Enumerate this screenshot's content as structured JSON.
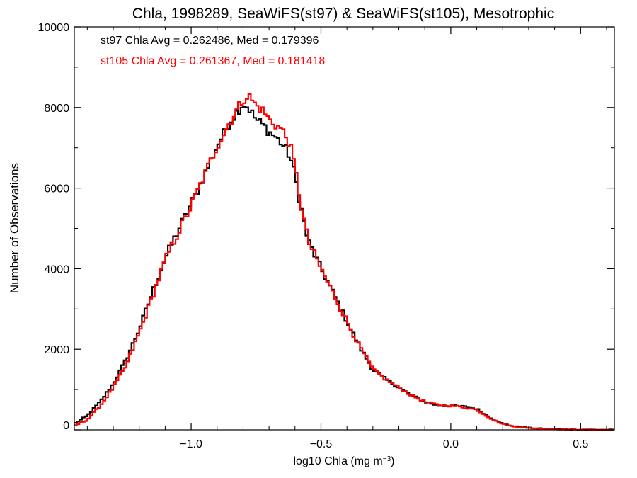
{
  "chart_data": {
    "type": "line",
    "title": "Chla, 1998289, SeaWiFS(st97) & SeaWiFS(st105), Mesotrophic",
    "xlabel": "log10 Chla (mg m",
    "xlabel_sup": "−3",
    "xlabel_suffix": ")",
    "ylabel": "Number of Observations",
    "xlim": [
      -1.45,
      0.63
    ],
    "ylim": [
      0,
      10000
    ],
    "xticks": [
      -1.0,
      -0.5,
      0.0,
      0.5
    ],
    "xtick_labels": [
      "−1.0",
      "−0.5",
      "0.0",
      "0.5"
    ],
    "yticks": [
      0,
      2000,
      4000,
      6000,
      8000,
      10000
    ],
    "ytick_labels": [
      "0",
      "2000",
      "4000",
      "6000",
      "8000",
      "10000"
    ],
    "step": true,
    "grid": false,
    "annotations": [
      {
        "text": "st97 Chla Avg = 0.262486, Med = 0.179396",
        "color": "#000000"
      },
      {
        "text": "st105 Chla Avg = 0.261367, Med = 0.181418",
        "color": "#ff0000"
      }
    ],
    "series": [
      {
        "color": "#000000",
        "x": [
          -1.45,
          -1.4,
          -1.35,
          -1.3,
          -1.25,
          -1.2,
          -1.15,
          -1.1,
          -1.05,
          -1.0,
          -0.95,
          -0.9,
          -0.85,
          -0.8,
          -0.78,
          -0.75,
          -0.72,
          -0.7,
          -0.68,
          -0.65,
          -0.62,
          -0.6,
          -0.58,
          -0.55,
          -0.5,
          -0.45,
          -0.4,
          -0.35,
          -0.3,
          -0.25,
          -0.2,
          -0.15,
          -0.1,
          -0.05,
          0.0,
          0.05,
          0.1,
          0.15,
          0.2,
          0.25,
          0.3,
          0.35,
          0.4,
          0.5,
          0.6,
          0.63
        ],
        "y": [
          150,
          350,
          700,
          1150,
          1750,
          2500,
          3400,
          4250,
          4950,
          5600,
          6300,
          7050,
          7650,
          8100,
          8000,
          7700,
          7550,
          7400,
          7300,
          7100,
          6800,
          6300,
          5600,
          4700,
          4000,
          3350,
          2700,
          2050,
          1500,
          1250,
          1050,
          850,
          700,
          600,
          600,
          580,
          520,
          320,
          150,
          80,
          50,
          30,
          15,
          5,
          2,
          0
        ]
      },
      {
        "color": "#ff0000",
        "x": [
          -1.45,
          -1.4,
          -1.35,
          -1.3,
          -1.25,
          -1.2,
          -1.15,
          -1.1,
          -1.05,
          -1.0,
          -0.95,
          -0.9,
          -0.85,
          -0.8,
          -0.78,
          -0.75,
          -0.72,
          -0.7,
          -0.68,
          -0.65,
          -0.62,
          -0.6,
          -0.58,
          -0.55,
          -0.5,
          -0.45,
          -0.4,
          -0.35,
          -0.3,
          -0.25,
          -0.2,
          -0.15,
          -0.1,
          -0.05,
          0.0,
          0.05,
          0.1,
          0.15,
          0.2,
          0.25,
          0.3,
          0.35,
          0.4,
          0.5,
          0.6,
          0.63
        ],
        "y": [
          100,
          250,
          600,
          1050,
          1600,
          2400,
          3300,
          4200,
          4900,
          5550,
          6300,
          7050,
          7650,
          8200,
          8300,
          8050,
          7900,
          7700,
          7600,
          7450,
          7100,
          6500,
          5700,
          4700,
          4000,
          3350,
          2700,
          2050,
          1500,
          1250,
          1050,
          850,
          700,
          620,
          600,
          560,
          500,
          300,
          140,
          75,
          45,
          25,
          15,
          5,
          2,
          0
        ]
      }
    ]
  }
}
